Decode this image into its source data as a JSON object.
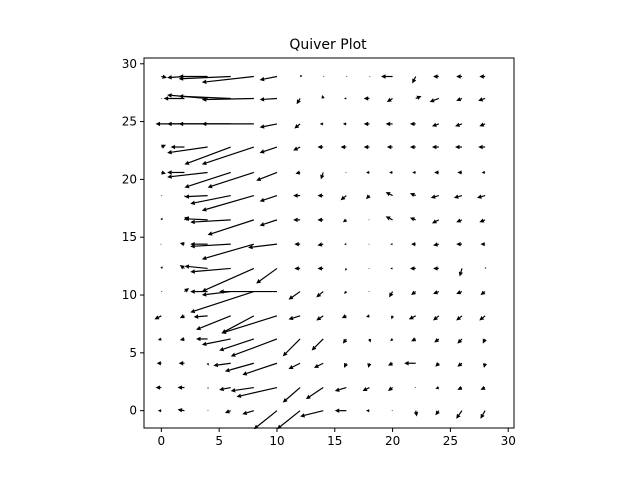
{
  "chart_data": {
    "type": "quiver",
    "title": "Quiver Plot",
    "xlabel": "",
    "ylabel": "",
    "xlim": [
      -1.5,
      30.5
    ],
    "ylim": [
      -1.5,
      30.5
    ],
    "x_ticks": [
      0,
      5,
      10,
      15,
      20,
      25,
      30
    ],
    "y_ticks": [
      0,
      5,
      10,
      15,
      20,
      25,
      30
    ],
    "x_tick_labels": [
      "0",
      "5",
      "10",
      "15",
      "20",
      "25",
      "30"
    ],
    "y_tick_labels": [
      "0",
      "5",
      "10",
      "15",
      "20",
      "25",
      "30"
    ],
    "grid": false,
    "arrow_color": "#000000",
    "grid_points": {
      "x": [
        0,
        2,
        4,
        6,
        8,
        10,
        12,
        14,
        16,
        18,
        20,
        22,
        24,
        26,
        28
      ],
      "y": [
        0,
        2,
        4,
        6,
        8,
        10,
        12,
        14,
        16,
        18,
        20,
        22,
        24,
        26,
        28
      ]
    },
    "vectors": [
      {
        "y": 28.9,
        "u": [
          0.5,
          -1.5,
          -2.5,
          -4.5,
          -4.5,
          -1.5,
          0.2,
          0.1,
          0.1,
          0.1,
          -1.0,
          -0.3,
          -0.5,
          -0.5,
          -0.5
        ],
        "v": [
          -0.1,
          -0.1,
          0,
          -0.2,
          -0.5,
          -0.3,
          0.1,
          0,
          0,
          0,
          0,
          -0.6,
          0,
          0,
          0
        ]
      },
      {
        "y": 27,
        "u": [
          0.1,
          -1.8,
          -3.5,
          -4.5,
          -4.5,
          -1.5,
          -0.3,
          -0.1,
          -0.2,
          -0.5,
          -0.5,
          0.5,
          -0.8,
          -0.5,
          -0.6
        ],
        "v": [
          0,
          0,
          0.3,
          0.2,
          -0.1,
          -0.1,
          -0.5,
          0.3,
          0,
          0,
          -0.3,
          0.2,
          -0.3,
          -0.2,
          -0.2
        ]
      },
      {
        "y": 24.8,
        "u": [
          0.1,
          -1.5,
          -4.5,
          -4.5,
          -4.5,
          -1.5,
          -0.5,
          -0.3,
          -0.3,
          -0.5,
          -0.6,
          -0.5,
          -0.6,
          -0.6,
          -0.5
        ],
        "v": [
          0,
          0,
          0,
          0,
          0,
          -0.3,
          -0.4,
          0,
          0,
          0,
          0,
          0,
          -0.2,
          -0.2,
          -0.2
        ]
      },
      {
        "y": 22.8,
        "u": [
          0.4,
          -1.2,
          -3.5,
          -4.0,
          -4.5,
          -1.5,
          -0.6,
          -0.5,
          -0.5,
          -0.5,
          -0.5,
          -0.5,
          -0.6,
          -0.6,
          -0.6
        ],
        "v": [
          0.2,
          0,
          -0.5,
          -1.5,
          -1.5,
          -0.5,
          -0.3,
          0,
          0,
          0,
          0,
          0,
          0,
          0,
          0
        ]
      },
      {
        "y": 20.6,
        "u": [
          0.4,
          -1.5,
          -3.5,
          -4.0,
          -4.0,
          -1.8,
          -0.4,
          -0.2,
          -0.1,
          -0.3,
          -0.3,
          -0.3,
          -0.4,
          -0.4,
          -0.3
        ],
        "v": [
          -0.1,
          0,
          -0.4,
          -1.3,
          -1.3,
          -0.7,
          -0.1,
          -0.6,
          0,
          0,
          0,
          0,
          0,
          0,
          0
        ]
      },
      {
        "y": 18.6,
        "u": [
          0.1,
          0.1,
          -2.0,
          -3.5,
          -4.5,
          -1.5,
          -0.6,
          -0.5,
          -0.5,
          -0.3,
          -0.6,
          -0.5,
          -0.7,
          -0.7,
          -0.7
        ],
        "v": [
          0,
          -0.1,
          -0.1,
          -0.7,
          -1.3,
          -0.5,
          0,
          0,
          -0.4,
          -0.3,
          0.3,
          0.2,
          -0.2,
          -0.2,
          -0.2
        ]
      },
      {
        "y": 16.5,
        "u": [
          0.1,
          0.4,
          -2.0,
          -3.5,
          -4.0,
          -1.5,
          -0.6,
          -0.5,
          -0.3,
          -0.1,
          -0.6,
          -0.5,
          -0.6,
          -0.5,
          -0.5
        ],
        "v": [
          0.2,
          0.3,
          0.1,
          -0.2,
          -1.3,
          -0.5,
          0,
          0,
          -0.2,
          0,
          0.3,
          0.2,
          -0.3,
          -0.2,
          -0.2
        ]
      },
      {
        "y": 14.4,
        "u": [
          -0.1,
          -0.4,
          -1.5,
          -3.5,
          -4.5,
          -2.5,
          -0.5,
          -0.5,
          -0.2,
          -0.1,
          -0.2,
          -0.4,
          -0.5,
          -0.5,
          -0.4
        ],
        "v": [
          0,
          0.1,
          0,
          -0.2,
          -1.3,
          -0.3,
          0,
          -0.1,
          0,
          0,
          0,
          0,
          -0.1,
          0,
          0
        ]
      },
      {
        "y": 12.3,
        "u": [
          0.1,
          -0.4,
          -2.0,
          -3.5,
          -4.5,
          -1.8,
          -0.5,
          -0.5,
          -0.1,
          -0.1,
          -0.2,
          -0.5,
          -0.5,
          -0.2,
          0.1
        ],
        "v": [
          0.2,
          0.3,
          0.2,
          -0.3,
          -2.0,
          -1.3,
          0,
          0,
          -0.2,
          0,
          0,
          0,
          0,
          -0.7,
          0.1
        ]
      },
      {
        "y": 10.3,
        "u": [
          0.1,
          0.4,
          -1.5,
          -2.5,
          -5.5,
          -5.0,
          -1.0,
          -0.6,
          -0.2,
          -0.1,
          -0.3,
          -0.4,
          -0.5,
          -0.5,
          -0.4
        ],
        "v": [
          0,
          0.3,
          0,
          -0.3,
          -1.8,
          0,
          -0.7,
          -0.5,
          -0.2,
          0,
          -0.5,
          -0.3,
          -0.2,
          -0.2,
          -0.3
        ]
      },
      {
        "y": 8.2,
        "u": [
          -0.6,
          -0.4,
          -1.2,
          -3.0,
          -2.8,
          -4.8,
          -1.0,
          -0.6,
          -0.4,
          -0.3,
          -0.1,
          -0.6,
          -0.5,
          -0.5,
          -0.5
        ],
        "v": [
          -0.3,
          -0.2,
          -0.1,
          -1.2,
          -1.5,
          -1.5,
          -0.3,
          -0.4,
          -0.2,
          -0.1,
          -0.3,
          -0.3,
          -0.4,
          -0.4,
          -0.4
        ]
      },
      {
        "y": 6.2,
        "u": [
          -0.3,
          -0.4,
          -1.0,
          -2.5,
          -3.0,
          -4.0,
          -1.5,
          -1.0,
          -0.3,
          0.1,
          -0.2,
          -0.4,
          -0.4,
          -0.4,
          -0.2
        ],
        "v": [
          -0.1,
          -0.1,
          0,
          -0.5,
          -1.0,
          -1.5,
          -1.5,
          -1.0,
          -0.4,
          -0.3,
          -0.2,
          -0.2,
          -0.3,
          -0.4,
          -0.4
        ]
      },
      {
        "y": 4.1,
        "u": [
          -0.4,
          -0.5,
          0.1,
          -1.5,
          -2.5,
          -3.0,
          -1.0,
          -0.8,
          -0.2,
          -0.1,
          -0.4,
          -1.0,
          -0.3,
          -0.4,
          -0.1
        ],
        "v": [
          0,
          0,
          -0.2,
          -0.2,
          -0.7,
          -1.0,
          -0.5,
          -0.4,
          -0.4,
          -0.4,
          -0.2,
          0,
          -0.3,
          -0.3,
          -0.4
        ]
      },
      {
        "y": 2.0,
        "u": [
          -0.5,
          -0.6,
          0.1,
          -1.0,
          -2.0,
          -3.5,
          -1.5,
          -1.5,
          -1.0,
          -0.6,
          -0.4,
          -0.1,
          -0.3,
          -0.4,
          -0.4
        ],
        "v": [
          0,
          0,
          -0.1,
          -0.2,
          -0.3,
          -0.8,
          -1.3,
          -1.0,
          -0.3,
          -0.3,
          -0.3,
          0,
          -0.1,
          -0.2,
          -0.2
        ]
      },
      {
        "y": 0,
        "u": [
          -0.3,
          -0.6,
          0.1,
          -0.5,
          -1.0,
          -2.0,
          -2.0,
          -2.0,
          -1.0,
          -0.3,
          -0.1,
          0.1,
          -0.3,
          -0.5,
          -0.4
        ],
        "v": [
          0,
          0.1,
          0,
          -0.2,
          -0.3,
          -1.6,
          -1.6,
          -0.5,
          0,
          0,
          0,
          -0.5,
          -0.4,
          -0.7,
          -0.7
        ]
      }
    ]
  }
}
